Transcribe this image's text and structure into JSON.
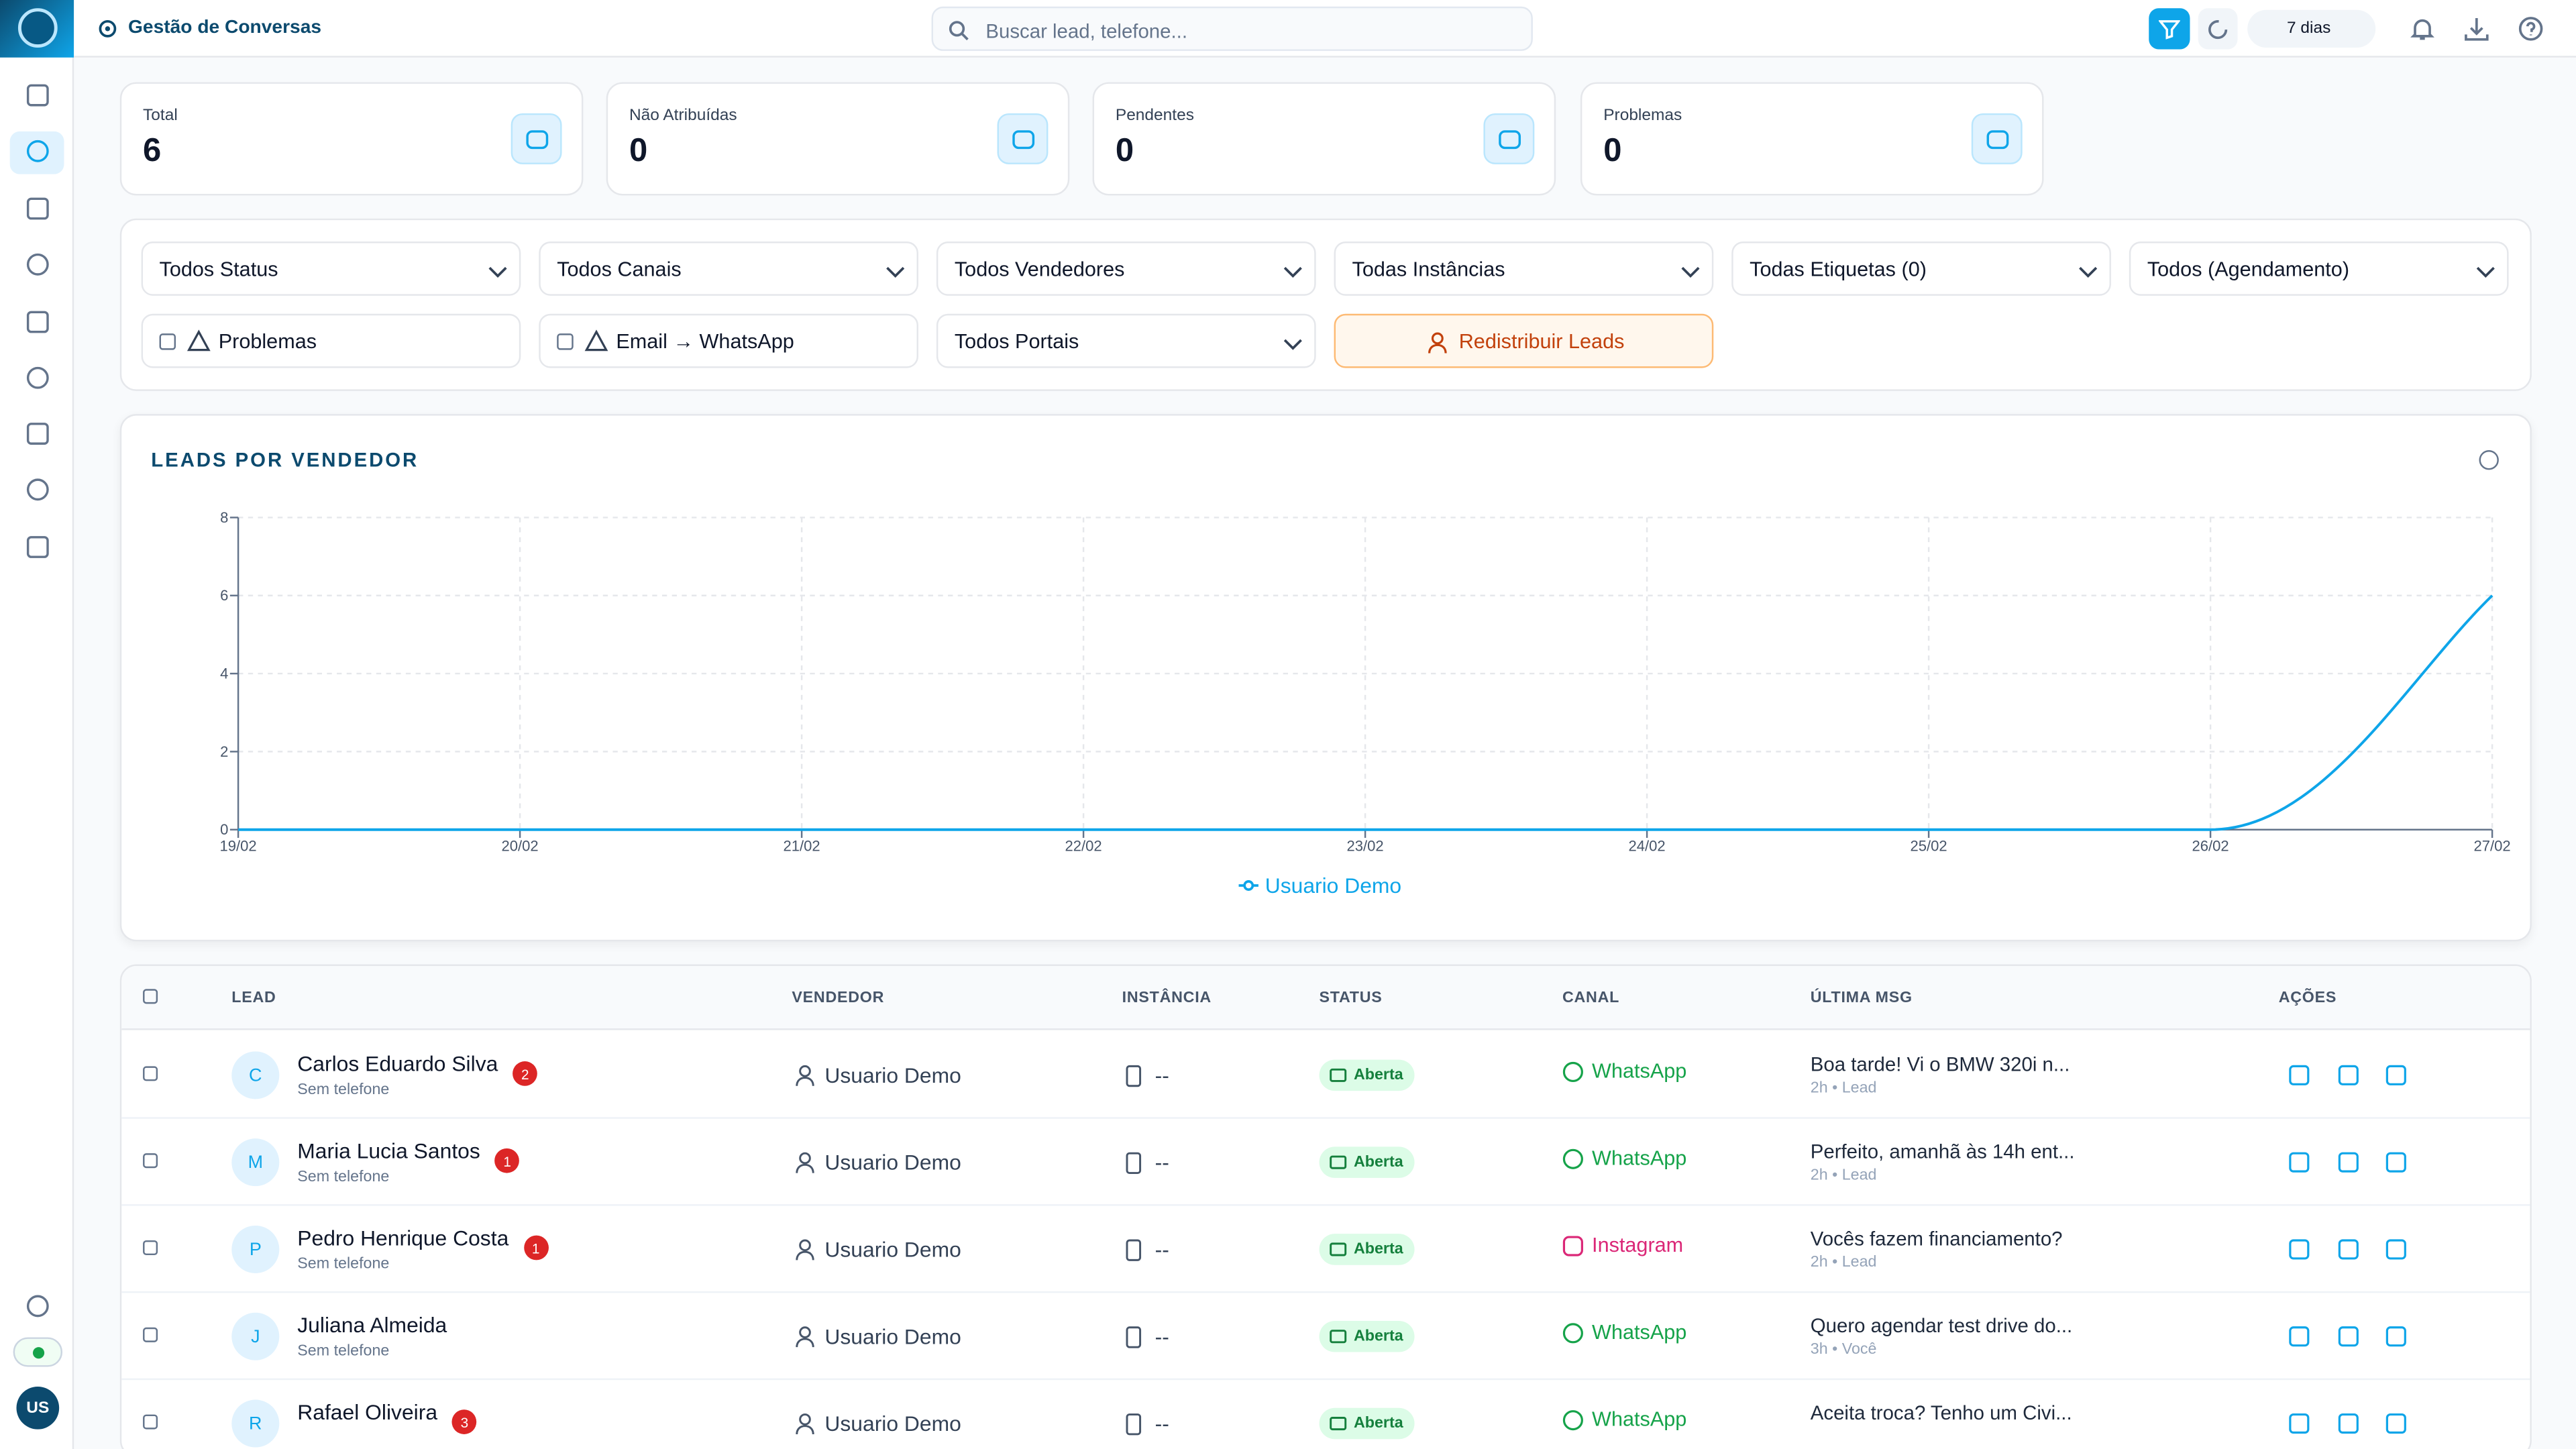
{
  "sidebar": {
    "user": "US"
  },
  "header": {
    "title": "Gestão de Conversas",
    "search_placeholder": "Buscar lead, telefone...",
    "period": "7 dias"
  },
  "stats": [
    {
      "label": "Total",
      "value": 6
    },
    {
      "label": "Não Atribuídas",
      "value": 0
    },
    {
      "label": "Pendentes",
      "value": 0
    },
    {
      "label": "Problemas",
      "value": 0
    }
  ],
  "filters": {
    "selects": [
      "Todos Status",
      "Todos Canais",
      "Todos Vendedores",
      "Todas Instâncias",
      "Todas Etiquetas (0)",
      "Todos (Agendamento)",
      "Todos Portais"
    ],
    "checkboxes": [
      "Problemas",
      "Email → WhatsApp"
    ],
    "button": "Redistribuir Leads"
  },
  "chart_data": {
    "type": "line",
    "title": "LEADS POR VENDEDOR",
    "categories": [
      "19/02",
      "20/02",
      "21/02",
      "22/02",
      "23/02",
      "24/02",
      "25/02",
      "26/02",
      "27/02"
    ],
    "series": [
      {
        "name": "Usuario Demo",
        "color": "#0ea5e9",
        "values": [
          0,
          0,
          0,
          0,
          0,
          0,
          0,
          0,
          6
        ]
      }
    ],
    "ylim": [
      0,
      8
    ],
    "yticks": [
      0,
      2,
      4,
      6,
      8
    ],
    "grid": true,
    "legend": "bottom"
  },
  "table": {
    "columns": [
      "LEAD",
      "VENDEDOR",
      "INSTÂNCIA",
      "STATUS",
      "CANAL",
      "ÚLTIMA MSG",
      "AÇÕES"
    ],
    "rows": [
      {
        "initial": "C",
        "name": "Carlos Eduardo Silva",
        "phone": "Sem telefone",
        "unread": 2,
        "seller": "Usuario Demo",
        "instance": "--",
        "status": "Aberta",
        "channel": "WhatsApp",
        "channel_color": "#16a34a",
        "last_message": "Boa tarde! Vi o BMW 320i n...",
        "meta": "2h • Lead"
      },
      {
        "initial": "M",
        "name": "Maria Lucia Santos",
        "phone": "Sem telefone",
        "unread": 1,
        "seller": "Usuario Demo",
        "instance": "--",
        "status": "Aberta",
        "channel": "WhatsApp",
        "channel_color": "#16a34a",
        "last_message": "Perfeito, amanhã às 14h ent...",
        "meta": "2h • Lead"
      },
      {
        "initial": "P",
        "name": "Pedro Henrique Costa",
        "phone": "Sem telefone",
        "unread": 1,
        "seller": "Usuario Demo",
        "instance": "--",
        "status": "Aberta",
        "channel": "Instagram",
        "channel_color": "#db2777",
        "last_message": "Vocês fazem financiamento?",
        "meta": "2h • Lead"
      },
      {
        "initial": "J",
        "name": "Juliana Almeida",
        "phone": "Sem telefone",
        "seller": "Usuario Demo",
        "instance": "--",
        "status": "Aberta",
        "channel": "WhatsApp",
        "channel_color": "#16a34a",
        "last_message": "Quero agendar test drive do...",
        "meta": "3h • Você"
      },
      {
        "initial": "R",
        "name": "Rafael Oliveira",
        "unread": 3,
        "seller": "Usuario Demo",
        "instance": "--",
        "status": "Aberta",
        "channel": "WhatsApp",
        "channel_color": "#16a34a",
        "last_message": "Aceita troca? Tenho um Civi..."
      }
    ]
  }
}
